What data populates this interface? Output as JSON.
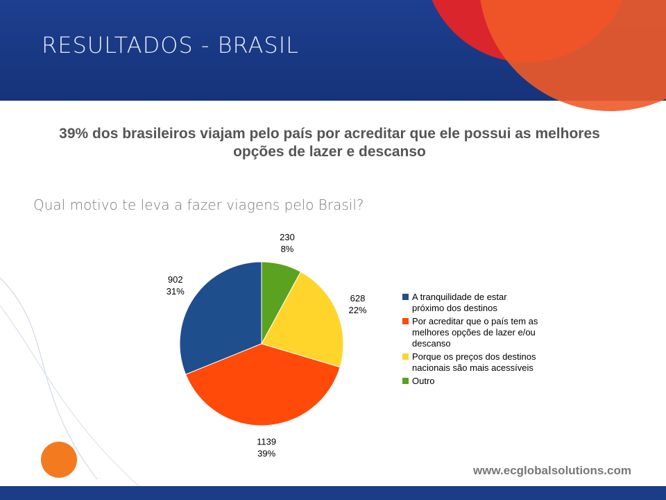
{
  "header": {
    "title": "RESULTADOS - BRASIL"
  },
  "headline": "39% dos brasileiros viajam pelo país por acreditar que ele possui as melhores opções de lazer e descanso",
  "question": "Qual motivo te leva a fazer viagens pelo Brasil?",
  "chart_data": {
    "type": "pie",
    "categories": [
      "A tranquilidade de estar próximo dos destinos",
      "Por acreditar que o país tem as melhores opções de lazer e/ou descanso",
      "Porque os preços dos destinos nacionais são mais acessíveis",
      "Outro"
    ],
    "values": [
      902,
      1139,
      628,
      230
    ],
    "value_labels": [
      [
        "902",
        "31%"
      ],
      [
        "1139",
        "39%"
      ],
      [
        "628",
        "22%"
      ],
      [
        "230",
        "8%"
      ]
    ],
    "colors": [
      "#1f4e8c",
      "#ff4a0a",
      "#ffd52b",
      "#5aa21f"
    ]
  },
  "footer": {
    "url": "www.ecglobalsolutions.com"
  }
}
